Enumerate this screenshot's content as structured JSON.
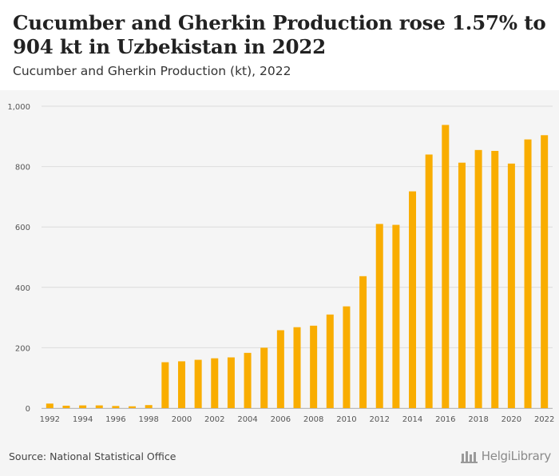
{
  "header": {
    "title": "Cucumber and Gherkin Production rose 1.57% to 904 kt in Uzbekistan in 2022",
    "subtitle": "Cucumber and Gherkin Production (kt), 2022"
  },
  "footer": {
    "source": "Source: National Statistical Office",
    "logo_text": "HelgiLibrary"
  },
  "chart_data": {
    "type": "bar",
    "title": "Cucumber and Gherkin Production rose 1.57% to 904 kt in Uzbekistan in 2022",
    "subtitle": "Cucumber and Gherkin Production (kt), 2022",
    "categories": [
      "1992",
      "1993",
      "1994",
      "1995",
      "1996",
      "1997",
      "1998",
      "1999",
      "2000",
      "2001",
      "2002",
      "2003",
      "2004",
      "2005",
      "2006",
      "2007",
      "2008",
      "2009",
      "2010",
      "2011",
      "2012",
      "2013",
      "2014",
      "2015",
      "2016",
      "2017",
      "2018",
      "2019",
      "2020",
      "2021",
      "2022"
    ],
    "x_tick_labels": [
      "1992",
      "1994",
      "1996",
      "1998",
      "2000",
      "2002",
      "2004",
      "2006",
      "2008",
      "2010",
      "2012",
      "2014",
      "2016",
      "2018",
      "2020",
      "2022"
    ],
    "values": [
      15,
      8,
      9,
      9,
      7,
      6,
      10,
      152,
      155,
      160,
      165,
      168,
      183,
      200,
      258,
      268,
      273,
      310,
      337,
      437,
      610,
      607,
      718,
      840,
      938,
      813,
      855,
      852,
      810,
      890,
      904
    ],
    "ylim": [
      0,
      1000
    ],
    "y_ticks": [
      0,
      200,
      400,
      600,
      800,
      1000
    ],
    "y_tick_labels": [
      "0",
      "200",
      "400",
      "600",
      "800",
      "1,000"
    ],
    "xlabel": "",
    "ylabel": "",
    "bar_color": "#f9ad00",
    "grid": true
  }
}
